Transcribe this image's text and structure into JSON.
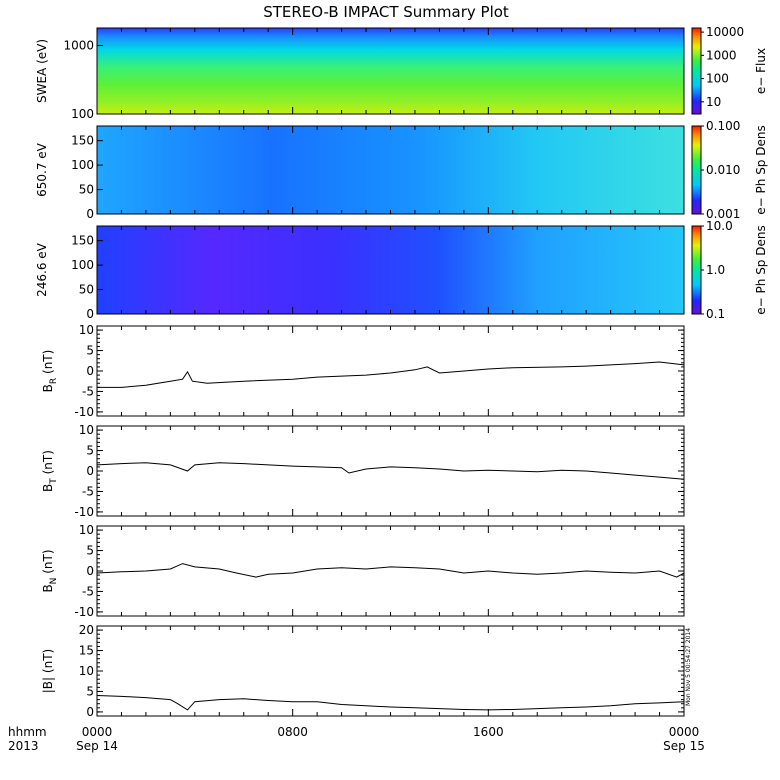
{
  "title": "STEREO-B IMPACT Summary Plot",
  "time_axis": {
    "row1_label": "hhmm",
    "row2_label": "2013",
    "ticks": [
      {
        "hhmm": "0000",
        "date": "Sep 14",
        "hour": 0
      },
      {
        "hhmm": "0800",
        "date": "",
        "hour": 8
      },
      {
        "hhmm": "1600",
        "date": "",
        "hour": 16
      },
      {
        "hhmm": "0000",
        "date": "Sep 15",
        "hour": 24
      }
    ]
  },
  "stamp_text": "Mon Nov 5 00:54:27 2014",
  "chart_data": [
    {
      "type": "heatmap",
      "ylabel": "SWEA (eV)",
      "ylog": true,
      "ylim": [
        100,
        1800
      ],
      "yticks": [
        "100",
        "1000"
      ],
      "colorbar": {
        "label": "e− Flux",
        "log": true,
        "range": [
          3,
          15000
        ],
        "ticks": [
          "10000",
          "1000",
          "100",
          "10"
        ],
        "tick_values": [
          10000,
          1000,
          100,
          10
        ]
      }
    },
    {
      "type": "heatmap",
      "ylabel": "650.7 eV",
      "ylim": [
        0,
        180
      ],
      "yticks": [
        "0",
        "50",
        "100",
        "150"
      ],
      "colorbar": {
        "label": "e− Ph Sp Dens",
        "log": true,
        "range": [
          0.001,
          0.1
        ],
        "ticks": [
          "0.100",
          "0.010",
          "0.001"
        ],
        "tick_values": [
          0.1,
          0.01,
          0.001
        ]
      }
    },
    {
      "type": "heatmap",
      "ylabel": "246.6 eV",
      "ylim": [
        0,
        180
      ],
      "yticks": [
        "0",
        "50",
        "100",
        "150"
      ],
      "colorbar": {
        "label": "e− Ph Sp Dens",
        "log": true,
        "range": [
          0.1,
          10
        ],
        "ticks": [
          "10.0",
          "1.0",
          "0.1"
        ],
        "tick_values": [
          10,
          1,
          0.1
        ]
      }
    },
    {
      "type": "line",
      "ylabel": "B",
      "ylabel_sub": "R",
      "ylabel_unit": "(nT)",
      "ylim": [
        -11,
        11
      ],
      "yticks": [
        "-10",
        "-5",
        "0",
        "5",
        "10"
      ],
      "x": [
        0,
        1,
        2,
        3,
        3.5,
        3.7,
        3.9,
        4.5,
        6,
        8,
        9,
        11,
        12,
        13,
        13.5,
        14,
        15,
        16,
        17,
        19,
        20,
        21,
        22,
        23,
        24
      ],
      "values": [
        -4,
        -4,
        -3.5,
        -2.5,
        -2,
        -0.2,
        -2.5,
        -3,
        -2.5,
        -2,
        -1.5,
        -1,
        -0.5,
        0.3,
        1,
        -0.5,
        0,
        0.5,
        0.8,
        1,
        1.2,
        1.5,
        1.8,
        2.2,
        1.5
      ]
    },
    {
      "type": "line",
      "ylabel": "B",
      "ylabel_sub": "T",
      "ylabel_unit": "(nT)",
      "ylim": [
        -11,
        11
      ],
      "yticks": [
        "-10",
        "-5",
        "0",
        "5",
        "10"
      ],
      "x": [
        0,
        1,
        2,
        3,
        3.7,
        4,
        5,
        6,
        7,
        8,
        9,
        10,
        10.3,
        11,
        12,
        13,
        14,
        15,
        16,
        17,
        18,
        19,
        20,
        21,
        22,
        23,
        24
      ],
      "values": [
        1.5,
        1.8,
        2,
        1.5,
        0,
        1.5,
        2,
        1.8,
        1.5,
        1.2,
        1,
        0.8,
        -0.5,
        0.5,
        1,
        0.8,
        0.5,
        0,
        0.2,
        0,
        -0.2,
        0.2,
        0,
        -0.5,
        -1,
        -1.5,
        -2
      ]
    },
    {
      "type": "line",
      "ylabel": "B",
      "ylabel_sub": "N",
      "ylabel_unit": "(nT)",
      "ylim": [
        -11,
        11
      ],
      "yticks": [
        "-10",
        "-5",
        "0",
        "5",
        "10"
      ],
      "x": [
        0,
        1,
        2,
        3,
        3.5,
        4,
        5,
        5.7,
        6.5,
        7,
        8,
        9,
        10,
        11,
        12,
        13,
        14,
        15,
        16,
        17,
        18,
        19,
        20,
        21,
        22,
        23,
        23.7,
        24
      ],
      "values": [
        -0.5,
        -0.2,
        0,
        0.5,
        1.8,
        1,
        0.5,
        -0.5,
        -1.5,
        -0.8,
        -0.5,
        0.5,
        0.8,
        0.5,
        1,
        0.8,
        0.5,
        -0.5,
        0,
        -0.5,
        -0.8,
        -0.5,
        0,
        -0.3,
        -0.5,
        0,
        -1.5,
        -0.5
      ]
    },
    {
      "type": "line",
      "ylabel": "|B|",
      "ylabel_sub": "",
      "ylabel_unit": "(nT)",
      "ylim": [
        -1,
        21
      ],
      "yticks": [
        "0",
        "5",
        "10",
        "15",
        "20"
      ],
      "x": [
        0,
        1,
        2,
        3,
        3.3,
        3.7,
        4,
        5,
        6,
        7,
        8,
        9,
        10,
        11,
        12,
        13,
        14,
        15,
        16,
        17,
        18,
        19,
        20,
        21,
        22,
        23,
        24
      ],
      "values": [
        4,
        3.8,
        3.5,
        3,
        2,
        0.5,
        2.5,
        3,
        3.2,
        2.8,
        2.5,
        2.5,
        1.8,
        1.5,
        1.2,
        1,
        0.8,
        0.6,
        0.5,
        0.6,
        0.8,
        1,
        1.2,
        1.5,
        2,
        2.2,
        2.5
      ]
    }
  ]
}
